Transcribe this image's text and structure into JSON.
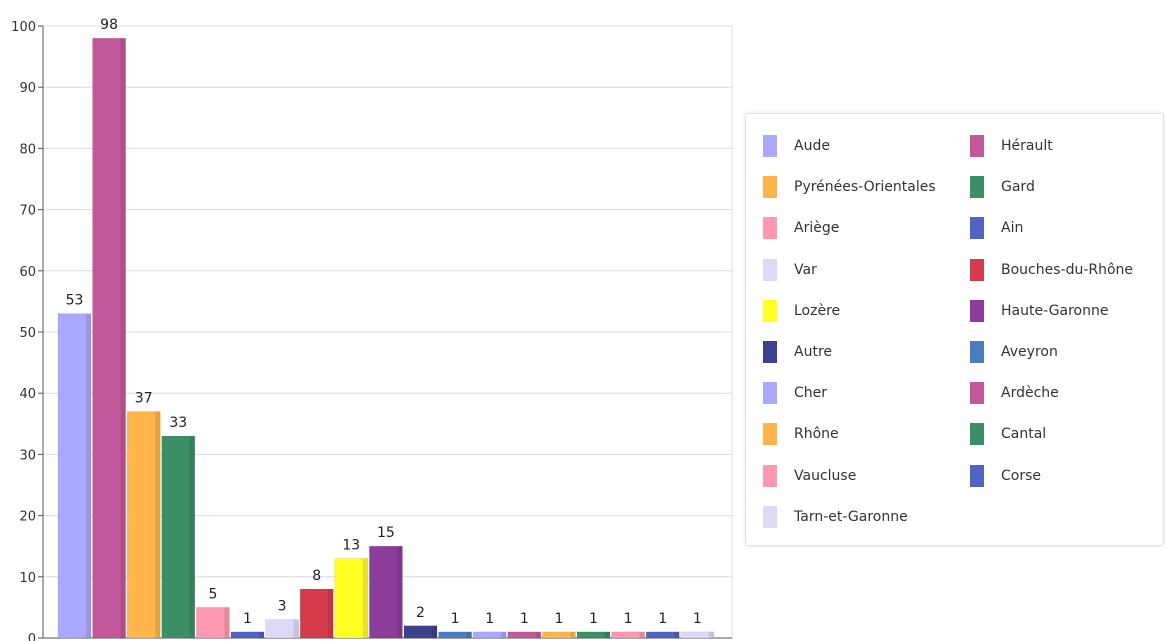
{
  "chart_data": {
    "type": "bar",
    "ylim": [
      0,
      100
    ],
    "yticks": [
      0,
      10,
      20,
      30,
      40,
      50,
      60,
      70,
      80,
      90,
      100
    ],
    "grid": true,
    "legend_position": "right",
    "series": [
      {
        "name": "Aude",
        "value": 53,
        "label": "53",
        "color": "#aaa8ff"
      },
      {
        "name": "Hérault",
        "value": 98,
        "label": "98",
        "color": "#c2579a"
      },
      {
        "name": "Pyrénées-Orientales",
        "value": 37,
        "label": "37",
        "color": "#ffb54a"
      },
      {
        "name": "Gard",
        "value": 33,
        "label": "33",
        "color": "#3a8f66"
      },
      {
        "name": "Ariège",
        "value": 5,
        "label": "5",
        "color": "#ff98b0"
      },
      {
        "name": "Ain",
        "value": 1,
        "label": "1",
        "color": "#4f64c4"
      },
      {
        "name": "Var",
        "value": 3,
        "label": "3",
        "color": "#dcd8f6"
      },
      {
        "name": "Bouches-du-Rhône",
        "value": 8,
        "label": "8",
        "color": "#d63b4c"
      },
      {
        "name": "Lozère",
        "value": 13,
        "label": "13",
        "color": "#ffff22"
      },
      {
        "name": "Haute-Garonne",
        "value": 15,
        "label": "15",
        "color": "#8c3c9c"
      },
      {
        "name": "Autre",
        "value": 2,
        "label": "2",
        "color": "#3a4290"
      },
      {
        "name": "Aveyron",
        "value": 1,
        "label": "1",
        "color": "#4a7cc0"
      },
      {
        "name": "Cher",
        "value": 1,
        "label": "1",
        "color": "#aaa8ff"
      },
      {
        "name": "Ardèche",
        "value": 1,
        "label": "1",
        "color": "#c2579a"
      },
      {
        "name": "Rhône",
        "value": 1,
        "label": "1",
        "color": "#ffb54a"
      },
      {
        "name": "Cantal",
        "value": 1,
        "label": "1",
        "color": "#3a8f66"
      },
      {
        "name": "Vaucluse",
        "value": 1,
        "label": "1",
        "color": "#ff98b0"
      },
      {
        "name": "Corse",
        "value": 1,
        "label": "1",
        "color": "#4f64c4"
      },
      {
        "name": "Tarn-et-Garonne",
        "value": 1,
        "label": "1",
        "color": "#dcd8f6"
      }
    ],
    "legend_order": [
      "Aude",
      "Pyrénées-Orientales",
      "Ariège",
      "Var",
      "Lozère",
      "Autre",
      "Cher",
      "Rhône",
      "Vaucluse",
      "Tarn-et-Garonne",
      "Hérault",
      "Gard",
      "Ain",
      "Bouches-du-Rhône",
      "Haute-Garonne",
      "Aveyron",
      "Ardèche",
      "Cantal",
      "Corse"
    ]
  }
}
